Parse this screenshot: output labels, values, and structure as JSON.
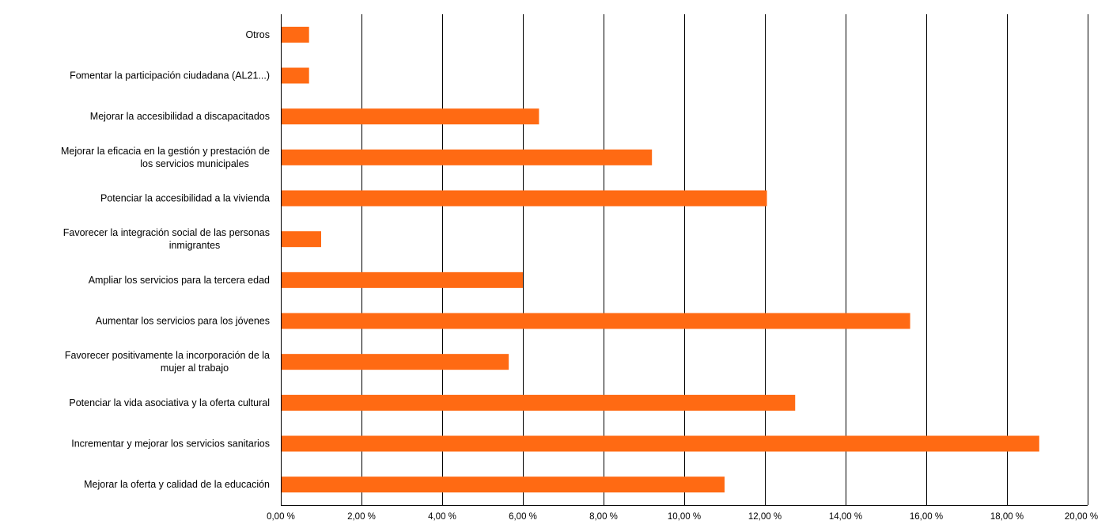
{
  "chart_data": {
    "type": "bar",
    "orientation": "horizontal",
    "categories": [
      "Otros",
      "Fomentar la participación ciudadana (AL21...)",
      "Mejorar la accesibilidad a discapacitados",
      "Mejorar la eficacia en la gestión y prestación de los servicios municipales",
      "Potenciar la accesibilidad a la vivienda",
      "Favorecer la integración social de las personas inmigrantes",
      "Ampliar los servicios para la tercera edad",
      "Aumentar los servicios para los jóvenes",
      "Favorecer positivamente la incorporación de la mujer al trabajo",
      "Potenciar la vida asociativa y la oferta cultural",
      "Incrementar y mejorar los servicios sanitarios",
      "Mejorar la oferta y calidad de la educación"
    ],
    "category_label_lines": [
      [
        "Otros"
      ],
      [
        "Fomentar la participación ciudadana (AL21...)"
      ],
      [
        "Mejorar la accesibilidad a discapacitados"
      ],
      [
        "Mejorar la eficacia en la gestión y prestación de",
        "los servicios municipales"
      ],
      [
        "Potenciar la accesibilidad a la vivienda"
      ],
      [
        "Favorecer la integración social de las personas",
        "inmigrantes"
      ],
      [
        "Ampliar los servicios para la tercera edad"
      ],
      [
        "Aumentar los servicios para los jóvenes"
      ],
      [
        "Favorecer positivamente la incorporación de la",
        "mujer al trabajo"
      ],
      [
        "Potenciar la vida asociativa y la oferta cultural"
      ],
      [
        "Incrementar y mejorar los servicios sanitarios"
      ],
      [
        "Mejorar la oferta y calidad de la educación"
      ]
    ],
    "values": [
      0.7,
      0.7,
      6.4,
      9.2,
      12.05,
      1.0,
      6.0,
      15.6,
      5.65,
      12.75,
      18.8,
      11.0
    ],
    "unit": "%",
    "xlim": [
      0,
      20
    ],
    "x_ticks": [
      "0,00 %",
      "2,00 %",
      "4,00 %",
      "6,00 %",
      "8,00 %",
      "10,00 %",
      "12,00 %",
      "14,00 %",
      "16,00 %",
      "18,00 %",
      "20,00 %"
    ],
    "title": "",
    "xlabel": "",
    "ylabel": "",
    "grid": true,
    "legend": "none",
    "bar_color": "#ff6a13",
    "grid_color": "#000000"
  }
}
